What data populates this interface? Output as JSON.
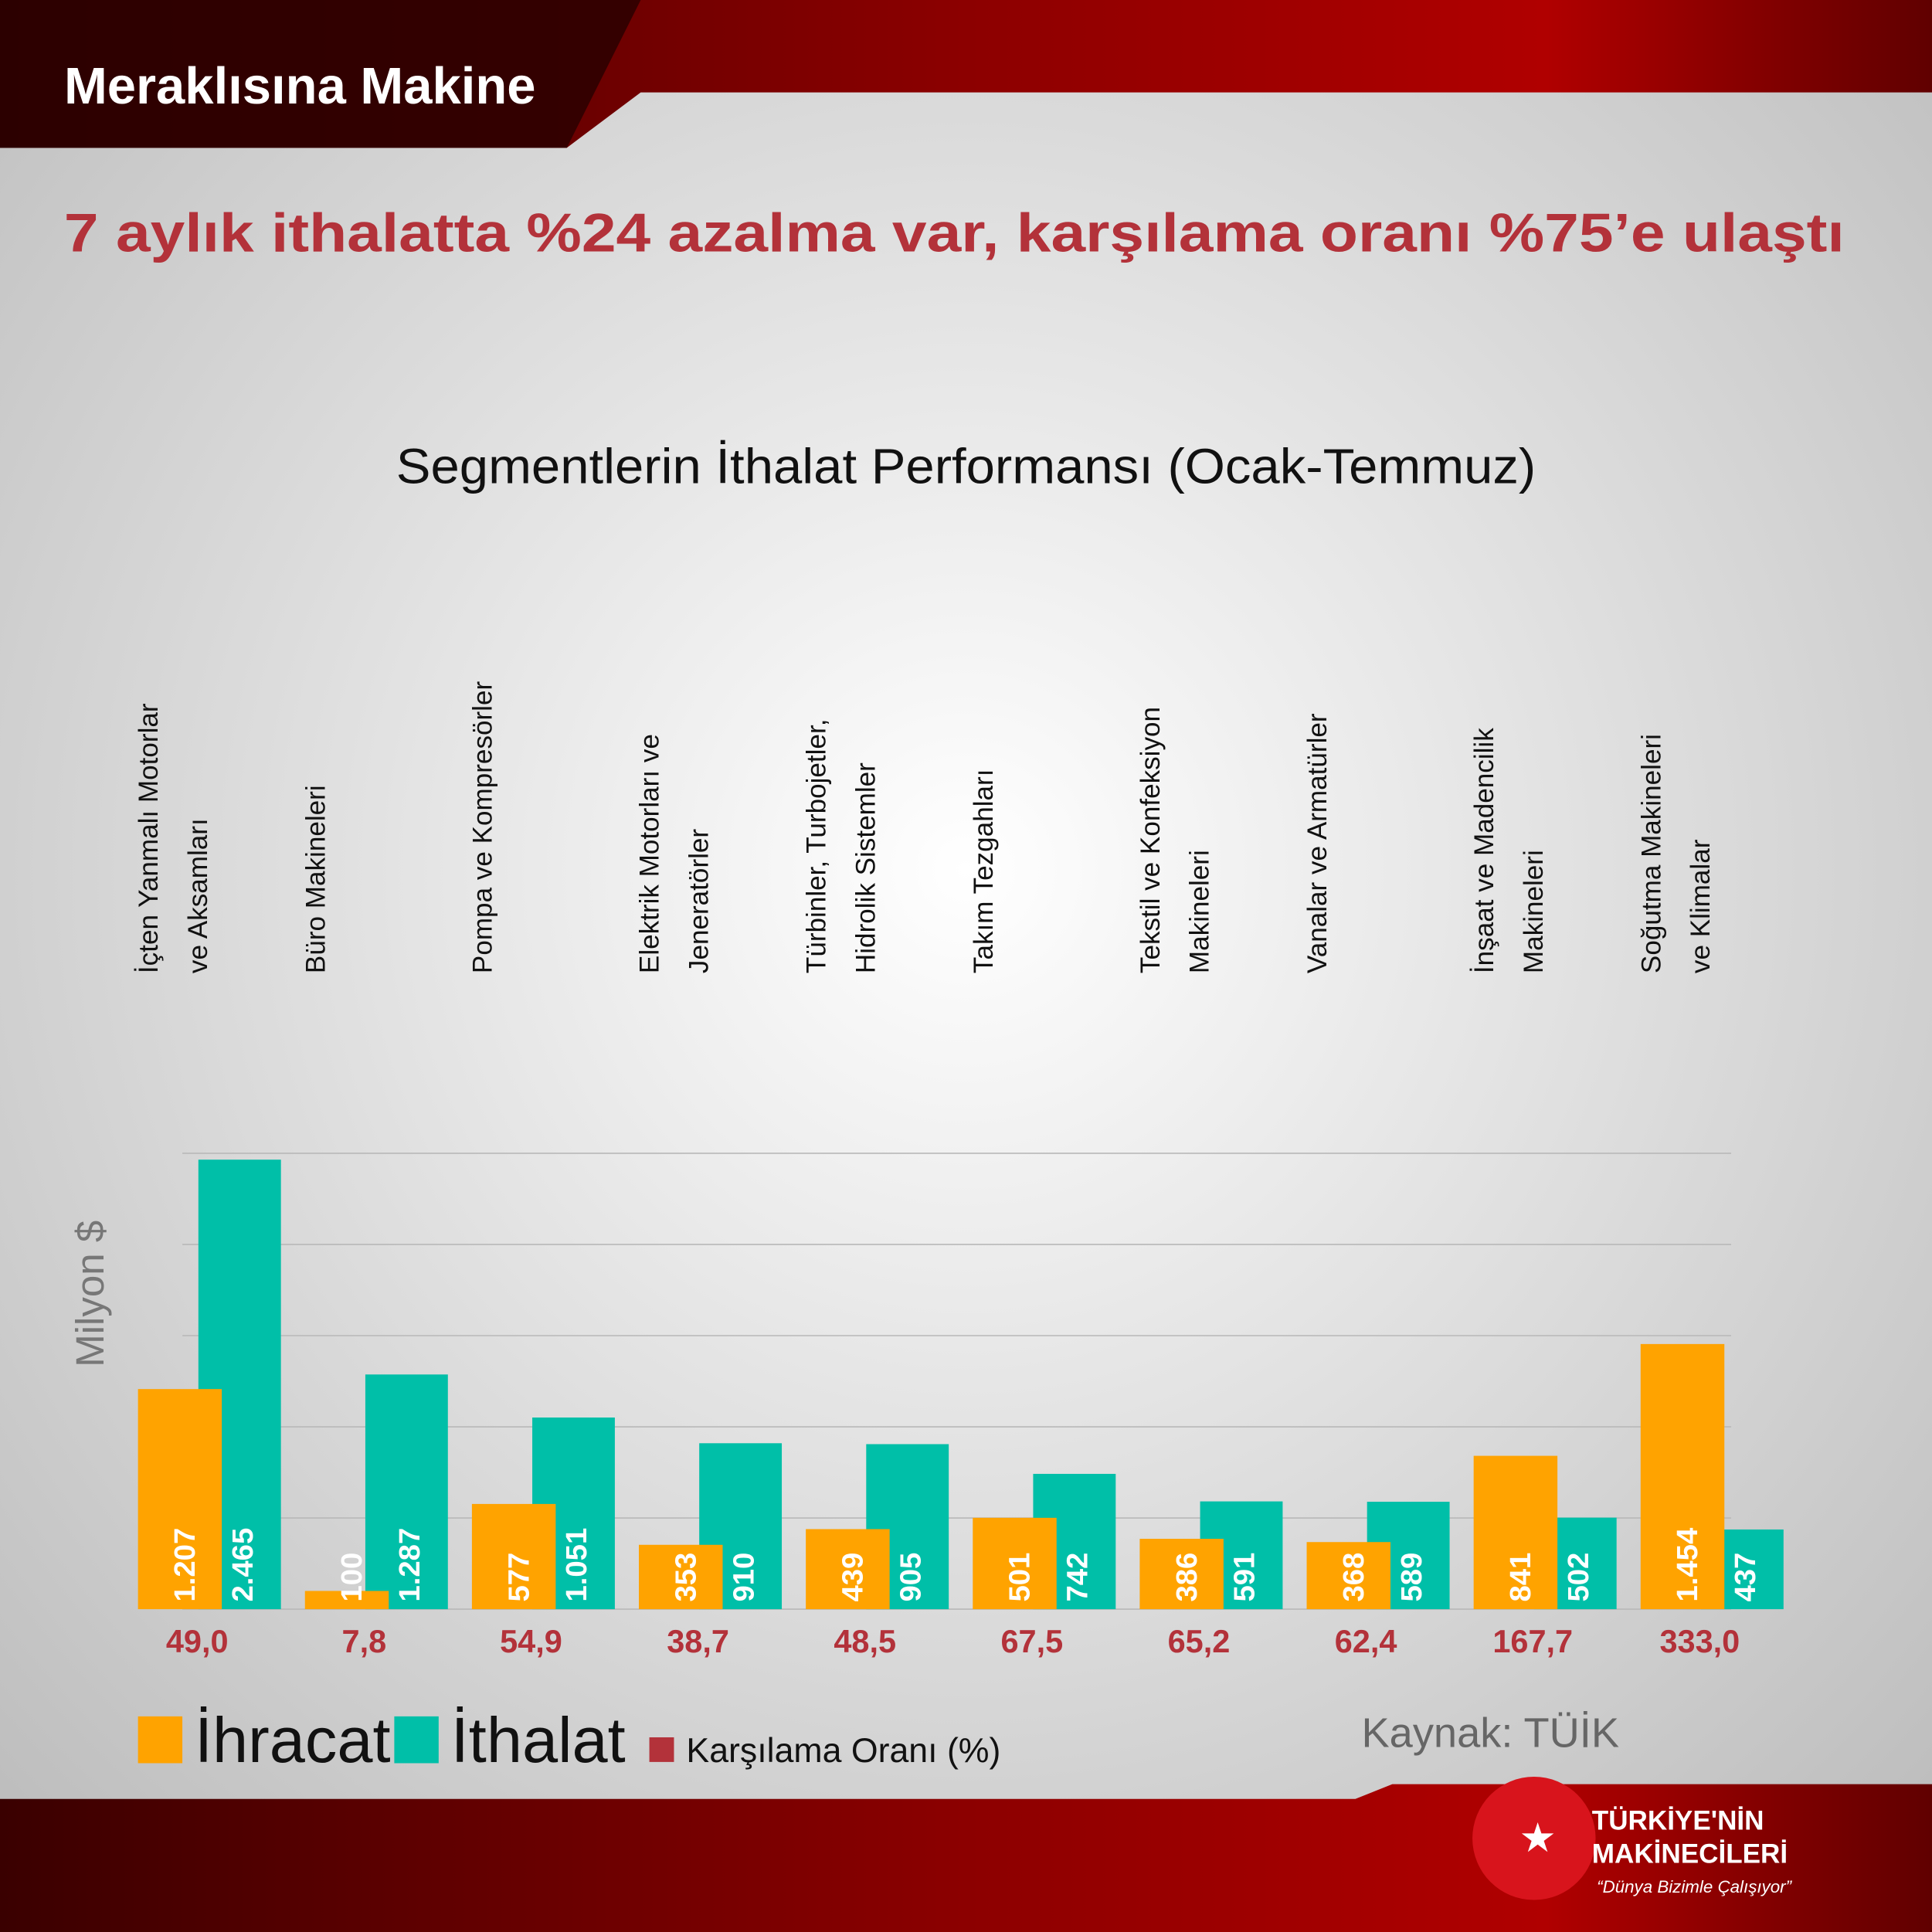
{
  "header": {
    "title": "Meraklısına Makine"
  },
  "headline": "7 aylık ithalatta %24 azalma var, karşılama oranı %75’e ulaştı",
  "chart_data": {
    "type": "bar",
    "title": "Segmentlerin İthalat Performansı (Ocak-Temmuz)",
    "y_label": "Milyon $",
    "categories": [
      [
        "İçten Yanmalı Motorlar",
        "ve Aksamları"
      ],
      [
        "Büro Makineleri"
      ],
      [
        "Pompa ve Kompresörler"
      ],
      [
        "Elektrik Motorları ve",
        "Jeneratörler"
      ],
      [
        "Türbinler, Turbojetler,",
        "Hidrolik Sistemler"
      ],
      [
        "Takım Tezgahları"
      ],
      [
        "Tekstil ve Konfeksiyon",
        "Makineleri"
      ],
      [
        "Vanalar ve Armatürler"
      ],
      [
        "İnşaat ve Madencilik",
        "Makineleri"
      ],
      [
        "Soğutma Makineleri",
        "ve Klimalar"
      ]
    ],
    "series": [
      {
        "name": "İhracat",
        "color": "#ffa300",
        "values": [
          1207,
          100,
          577,
          353,
          439,
          501,
          386,
          368,
          841,
          1454
        ],
        "value_labels": [
          "1.207",
          "100",
          "577",
          "353",
          "439",
          "501",
          "386",
          "368",
          "841",
          "1.454"
        ]
      },
      {
        "name": "İthalat",
        "color": "#00bfa8",
        "values": [
          2465,
          1287,
          1051,
          910,
          905,
          742,
          591,
          589,
          502,
          437
        ],
        "value_labels": [
          "2.465",
          "1.287",
          "1.051",
          "910",
          "905",
          "742",
          "591",
          "589",
          "502",
          "437"
        ]
      },
      {
        "name": "Karşılama Oranı (%)",
        "color": "#b3323a",
        "values": [
          49.0,
          7.8,
          54.9,
          38.7,
          48.5,
          67.5,
          65.2,
          62.4,
          167.7,
          333.0
        ],
        "value_labels": [
          "49,0",
          "7,8",
          "54,9",
          "38,7",
          "48,5",
          "67,5",
          "65,2",
          "62,4",
          "167,7",
          "333,0"
        ]
      }
    ],
    "ylim": [
      0,
      2500
    ],
    "yticks": [
      0,
      500,
      1000,
      1500,
      2000,
      2500
    ],
    "grid": true
  },
  "source": "Kaynak: TÜİK",
  "logo": {
    "line1": "TÜRKİYE'NİN",
    "line2": "MAKİNECİLERİ",
    "slogan": "“Dünya Bizimle Çalışıyor”"
  }
}
